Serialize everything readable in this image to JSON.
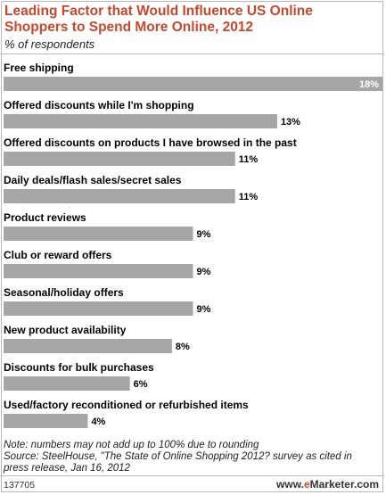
{
  "chart_data": {
    "type": "bar",
    "orientation": "horizontal",
    "title": "Leading Factor that Would Influence US Online Shoppers to Spend More Online, 2012",
    "subtitle": "% of respondents",
    "categories": [
      "Free shipping",
      "Offered discounts while I'm shopping",
      "Offered discounts on products I have browsed in the past",
      "Daily deals/flash sales/secret sales",
      "Product reviews",
      "Club or reward offers",
      "Seasonal/holiday offers",
      "New product availability",
      "Discounts for bulk purchases",
      "Used/factory reconditioned or refurbished items"
    ],
    "values": [
      18,
      13,
      11,
      11,
      9,
      9,
      9,
      8,
      6,
      4
    ],
    "value_labels": [
      "18%",
      "13%",
      "11%",
      "11%",
      "9%",
      "9%",
      "9%",
      "8%",
      "6%",
      "4%"
    ],
    "xlim": [
      0,
      18
    ],
    "grid": false,
    "colors": {
      "bar": "#a6a6a6",
      "title": "#c8472d"
    }
  },
  "notes": {
    "line1": "Note: numbers may not add up to 100% due to rounding",
    "line2": "Source: SteelHouse, \"The State of Online Shopping 2012? survey as cited in",
    "line3": "press release, Jan 16, 2012"
  },
  "footer": {
    "chart_id": "137705",
    "brand_prefix": "www.",
    "brand_e": "e",
    "brand_rest": "Marketer.com"
  }
}
